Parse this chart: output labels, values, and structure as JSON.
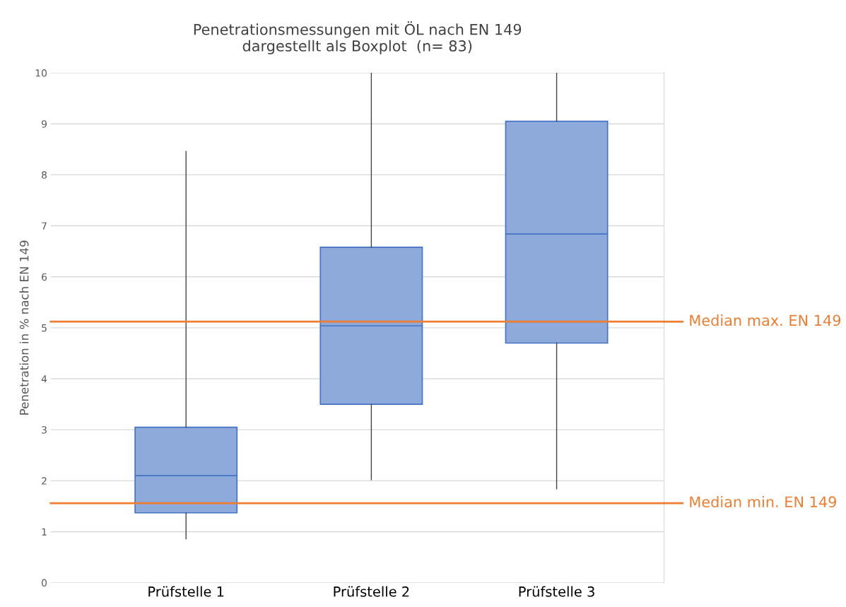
{
  "chart_data": {
    "type": "box",
    "title": "Penetrationsmessungen mit ÖL nach EN 149\ndargestellt als Boxplot  (n= 83)",
    "ylabel": "Penetration in % nach EN 149",
    "categories": [
      "Prüfstelle 1",
      "Prüfstelle 2",
      "Prüfstelle 3"
    ],
    "series": [
      {
        "color": "#8eaadb",
        "boxes": [
          {
            "low": 0.86,
            "q1": 1.37,
            "median": 2.1,
            "q3": 3.05,
            "high": 8.46
          },
          {
            "low": 2.02,
            "q1": 3.5,
            "median": 5.04,
            "q3": 6.58,
            "high": 10
          },
          {
            "low": 1.84,
            "q1": 4.7,
            "median": 6.84,
            "q3": 9.05,
            "high": 10
          }
        ]
      }
    ],
    "ylim": [
      0,
      10
    ],
    "yticks": [
      0,
      1,
      2,
      3,
      4,
      5,
      6,
      7,
      8,
      9,
      10
    ],
    "grid": "y",
    "ref_lines": [
      {
        "axis": "y",
        "value": 5.12,
        "label": "Median max. EN 149",
        "color": "#ed7d31"
      },
      {
        "axis": "y",
        "value": 1.56,
        "label": "Median min. EN 149",
        "color": "#ed7d31"
      }
    ]
  }
}
